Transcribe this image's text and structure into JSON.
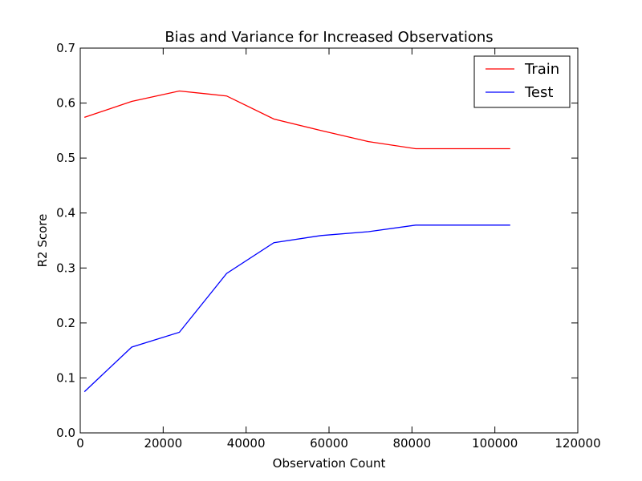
{
  "chart_data": {
    "type": "line",
    "title": "Bias and Variance for Increased Observations",
    "xlabel": "Observation Count",
    "ylabel": "R2 Score",
    "xlim": [
      0,
      120000
    ],
    "ylim": [
      0.0,
      0.7
    ],
    "xticks": [
      0,
      20000,
      40000,
      60000,
      80000,
      100000,
      120000
    ],
    "xtick_labels": [
      "0",
      "20000",
      "40000",
      "60000",
      "80000",
      "100000",
      "120000"
    ],
    "yticks": [
      0.0,
      0.1,
      0.2,
      0.3,
      0.4,
      0.5,
      0.6,
      0.7
    ],
    "ytick_labels": [
      "0.0",
      "0.1",
      "0.2",
      "0.3",
      "0.4",
      "0.5",
      "0.6",
      "0.7"
    ],
    "grid": false,
    "legend": {
      "position": "top-right"
    },
    "x": [
      1000,
      12400,
      23900,
      35300,
      46700,
      58100,
      69500,
      80900,
      92300,
      103700
    ],
    "series": [
      {
        "name": "Train",
        "color": "#ff0000",
        "values": [
          0.574,
          0.603,
          0.622,
          0.613,
          0.571,
          0.55,
          0.53,
          0.517,
          0.517,
          0.517
        ]
      },
      {
        "name": "Test",
        "color": "#0000ff",
        "values": [
          0.075,
          0.156,
          0.183,
          0.29,
          0.346,
          0.359,
          0.366,
          0.378,
          0.378,
          0.378
        ]
      }
    ]
  }
}
